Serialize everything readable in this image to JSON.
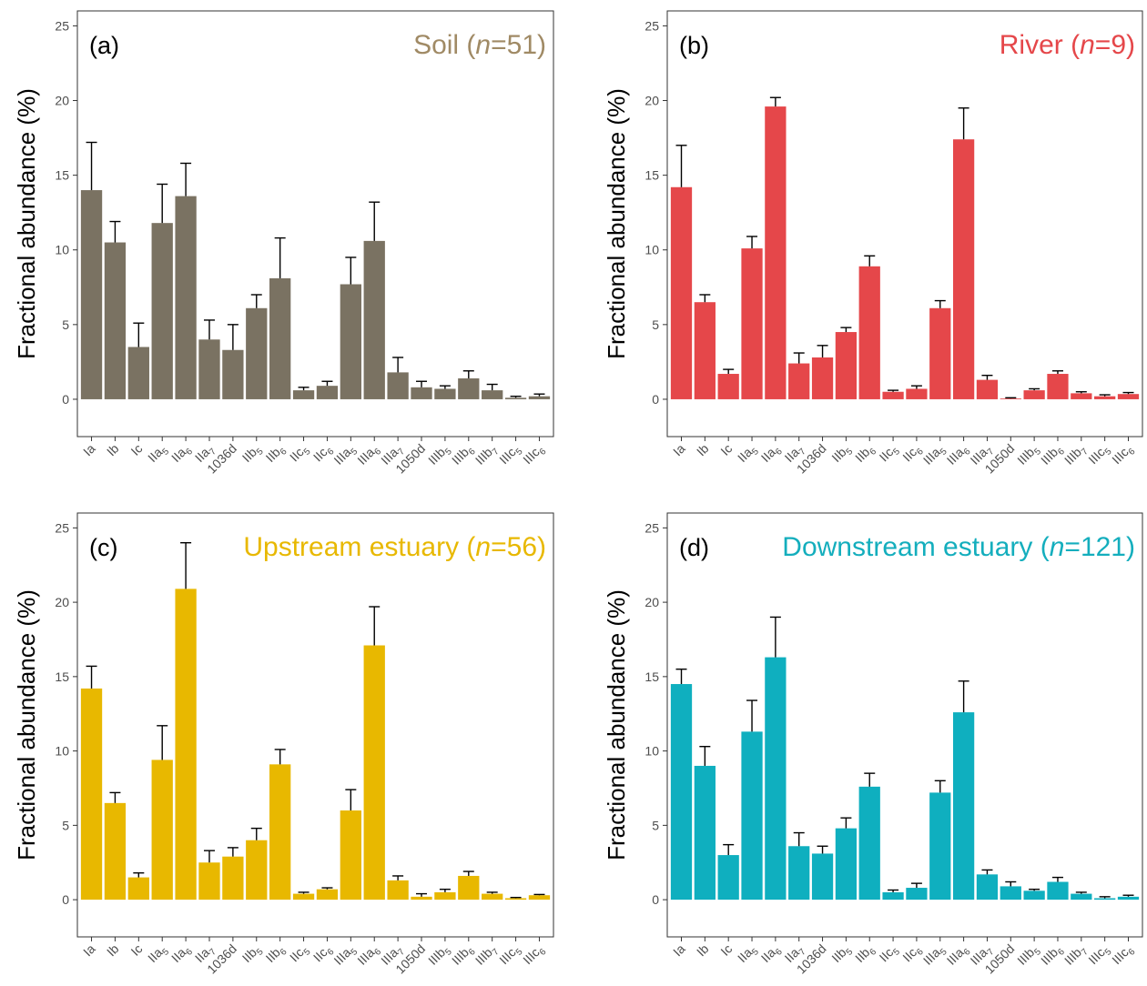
{
  "chart_data": [
    {
      "type": "bar",
      "panel_label": "(a)",
      "title_main": "Soil (",
      "title_n": "n",
      "title_tail": "=51)",
      "title_color": "#A08A65",
      "bar_color": "#7A7262",
      "ylabel": "Fractional abundance (%)",
      "ylim": [
        -2.5,
        26
      ],
      "yticks": [
        0,
        5,
        10,
        15,
        20,
        25
      ],
      "grid": false,
      "categories": [
        "Ia",
        "Ib",
        "Ic",
        "IIa5",
        "IIa6",
        "IIa7",
        "1036d",
        "IIb5",
        "IIb6",
        "IIc5",
        "IIc6",
        "IIIa5",
        "IIIa6",
        "IIIa7",
        "1050d",
        "IIIb5",
        "IIIb6",
        "IIIb7",
        "IIIc5",
        "IIIc6"
      ],
      "values": [
        14.0,
        10.5,
        3.5,
        11.8,
        13.6,
        4.0,
        3.3,
        6.1,
        8.1,
        0.6,
        0.9,
        7.7,
        10.6,
        1.8,
        0.8,
        0.7,
        1.4,
        0.6,
        0.1,
        0.2
      ],
      "errors": [
        3.2,
        1.4,
        1.6,
        2.6,
        2.2,
        1.3,
        1.7,
        0.9,
        2.7,
        0.2,
        0.3,
        1.8,
        2.6,
        1.0,
        0.4,
        0.2,
        0.5,
        0.4,
        0.1,
        0.15
      ]
    },
    {
      "type": "bar",
      "panel_label": "(b)",
      "title_main": "River (",
      "title_n": "n",
      "title_tail": "=9)",
      "title_color": "#E5474A",
      "bar_color": "#E5474A",
      "ylabel": "Fractional abundance (%)",
      "ylim": [
        -2.5,
        26
      ],
      "yticks": [
        0,
        5,
        10,
        15,
        20,
        25
      ],
      "grid": false,
      "categories": [
        "Ia",
        "Ib",
        "Ic",
        "IIa5",
        "IIa6",
        "IIa7",
        "1036d",
        "IIb5",
        "IIb6",
        "IIc5",
        "IIc6",
        "IIIa5",
        "IIIa6",
        "IIIa7",
        "1050d",
        "IIIb5",
        "IIIb6",
        "IIIb7",
        "IIIc5",
        "IIIc6"
      ],
      "values": [
        14.2,
        6.5,
        1.7,
        10.1,
        19.6,
        2.4,
        2.8,
        4.5,
        8.9,
        0.5,
        0.7,
        6.1,
        17.4,
        1.3,
        0.05,
        0.6,
        1.7,
        0.4,
        0.2,
        0.35
      ],
      "errors": [
        2.8,
        0.5,
        0.3,
        0.8,
        0.6,
        0.7,
        0.8,
        0.3,
        0.7,
        0.1,
        0.2,
        0.5,
        2.1,
        0.3,
        0.05,
        0.1,
        0.2,
        0.1,
        0.1,
        0.1
      ]
    },
    {
      "type": "bar",
      "panel_label": "(c)",
      "title_main": "Upstream estuary (",
      "title_n": "n",
      "title_tail": "=56)",
      "title_color": "#E8B800",
      "bar_color": "#E8B800",
      "ylabel": "Fractional abundance (%)",
      "ylim": [
        -2.5,
        26
      ],
      "yticks": [
        0,
        5,
        10,
        15,
        20,
        25
      ],
      "grid": false,
      "categories": [
        "Ia",
        "Ib",
        "Ic",
        "IIa5",
        "IIa6",
        "IIa7",
        "1036d",
        "IIb5",
        "IIb6",
        "IIc5",
        "IIc6",
        "IIIa5",
        "IIIa6",
        "IIIa7",
        "1050d",
        "IIIb5",
        "IIIb6",
        "IIIb7",
        "IIIc5",
        "IIIc6"
      ],
      "values": [
        14.2,
        6.5,
        1.5,
        9.4,
        20.9,
        2.5,
        2.9,
        4.0,
        9.1,
        0.4,
        0.7,
        6.0,
        17.1,
        1.3,
        0.2,
        0.5,
        1.6,
        0.4,
        0.1,
        0.3
      ],
      "errors": [
        1.5,
        0.7,
        0.3,
        2.3,
        3.1,
        0.8,
        0.6,
        0.8,
        1.0,
        0.1,
        0.1,
        1.4,
        2.6,
        0.3,
        0.2,
        0.2,
        0.3,
        0.1,
        0.05,
        0.05
      ]
    },
    {
      "type": "bar",
      "panel_label": "(d)",
      "title_main": "Downstream estuary (",
      "title_n": "n",
      "title_tail": "=121)",
      "title_color": "#14AEBD",
      "bar_color": "#0FAFBF",
      "ylabel": "Fractional abundance (%)",
      "ylim": [
        -2.5,
        26
      ],
      "yticks": [
        0,
        5,
        10,
        15,
        20,
        25
      ],
      "grid": false,
      "categories": [
        "Ia",
        "Ib",
        "Ic",
        "IIa5",
        "IIa6",
        "IIa7",
        "1036d",
        "IIb5",
        "IIb6",
        "IIc5",
        "IIc6",
        "IIIa5",
        "IIIa6",
        "IIIa7",
        "1050d",
        "IIIb5",
        "IIIb6",
        "IIIb7",
        "IIIc5",
        "IIIc6"
      ],
      "values": [
        14.5,
        9.0,
        3.0,
        11.3,
        16.3,
        3.6,
        3.1,
        4.8,
        7.6,
        0.5,
        0.8,
        7.2,
        12.6,
        1.7,
        0.9,
        0.6,
        1.2,
        0.4,
        0.1,
        0.2
      ],
      "errors": [
        1.0,
        1.3,
        0.7,
        2.1,
        2.7,
        0.9,
        0.5,
        0.7,
        0.9,
        0.15,
        0.3,
        0.8,
        2.1,
        0.3,
        0.3,
        0.1,
        0.3,
        0.1,
        0.1,
        0.1
      ]
    }
  ]
}
